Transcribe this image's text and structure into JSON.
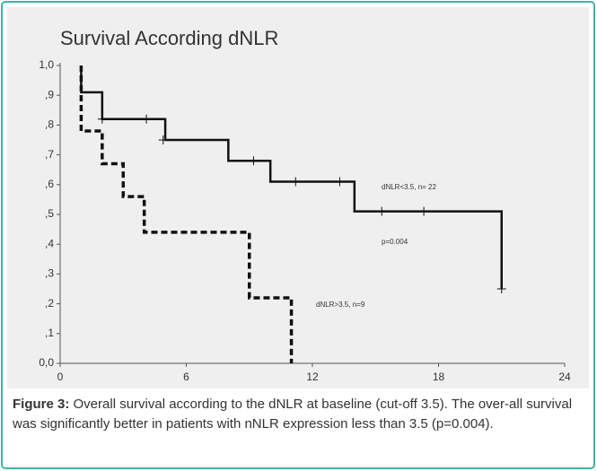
{
  "chart_data": {
    "type": "step",
    "title": "Survival According dNLR",
    "xlim": [
      0,
      24
    ],
    "xticks": [
      0,
      6,
      12,
      18,
      24
    ],
    "ylim": [
      0,
      1.0
    ],
    "yticks": [
      {
        "value": 0,
        "label": "0,0"
      },
      {
        "value": 0.1,
        "label": ",1"
      },
      {
        "value": 0.2,
        "label": ",2"
      },
      {
        "value": 0.3,
        "label": ",3"
      },
      {
        "value": 0.4,
        "label": ",4"
      },
      {
        "value": 0.5,
        "label": ",5"
      },
      {
        "value": 0.6,
        "label": ",6"
      },
      {
        "value": 0.7,
        "label": ",7"
      },
      {
        "value": 0.8,
        "label": ",8"
      },
      {
        "value": 0.9,
        "label": ",9"
      },
      {
        "value": 1.0,
        "label": "1,0"
      }
    ],
    "series": [
      {
        "name": "dNLR<3.5, n= 22",
        "color": "#111111",
        "dash": false,
        "x": [
          1,
          1,
          2,
          5,
          8,
          10,
          14,
          21
        ],
        "values": [
          1.0,
          0.91,
          0.82,
          0.75,
          0.68,
          0.61,
          0.51,
          0.25
        ],
        "censored_x": [
          2,
          4.1,
          4.9,
          9.2,
          11.2,
          13.3,
          15.3,
          17.3,
          21
        ],
        "censored_values": [
          0.82,
          0.82,
          0.75,
          0.68,
          0.61,
          0.61,
          0.51,
          0.51,
          0.25
        ]
      },
      {
        "name": "dNLR>3.5, n=9",
        "color": "#111111",
        "dash": true,
        "x": [
          1,
          1,
          2,
          3,
          4,
          9,
          11
        ],
        "values": [
          1.0,
          0.78,
          0.67,
          0.56,
          0.44,
          0.22,
          0.0
        ],
        "censored_x": [],
        "censored_values": []
      }
    ],
    "annotations": [
      "p=0.004"
    ]
  },
  "caption": {
    "label": "Figure 3:",
    "text": " Overall survival according to the dNLR at baseline (cut-off 3.5). The over-all survival was significantly better in patients with nNLR expression less than 3.5 (p=0.004)."
  }
}
